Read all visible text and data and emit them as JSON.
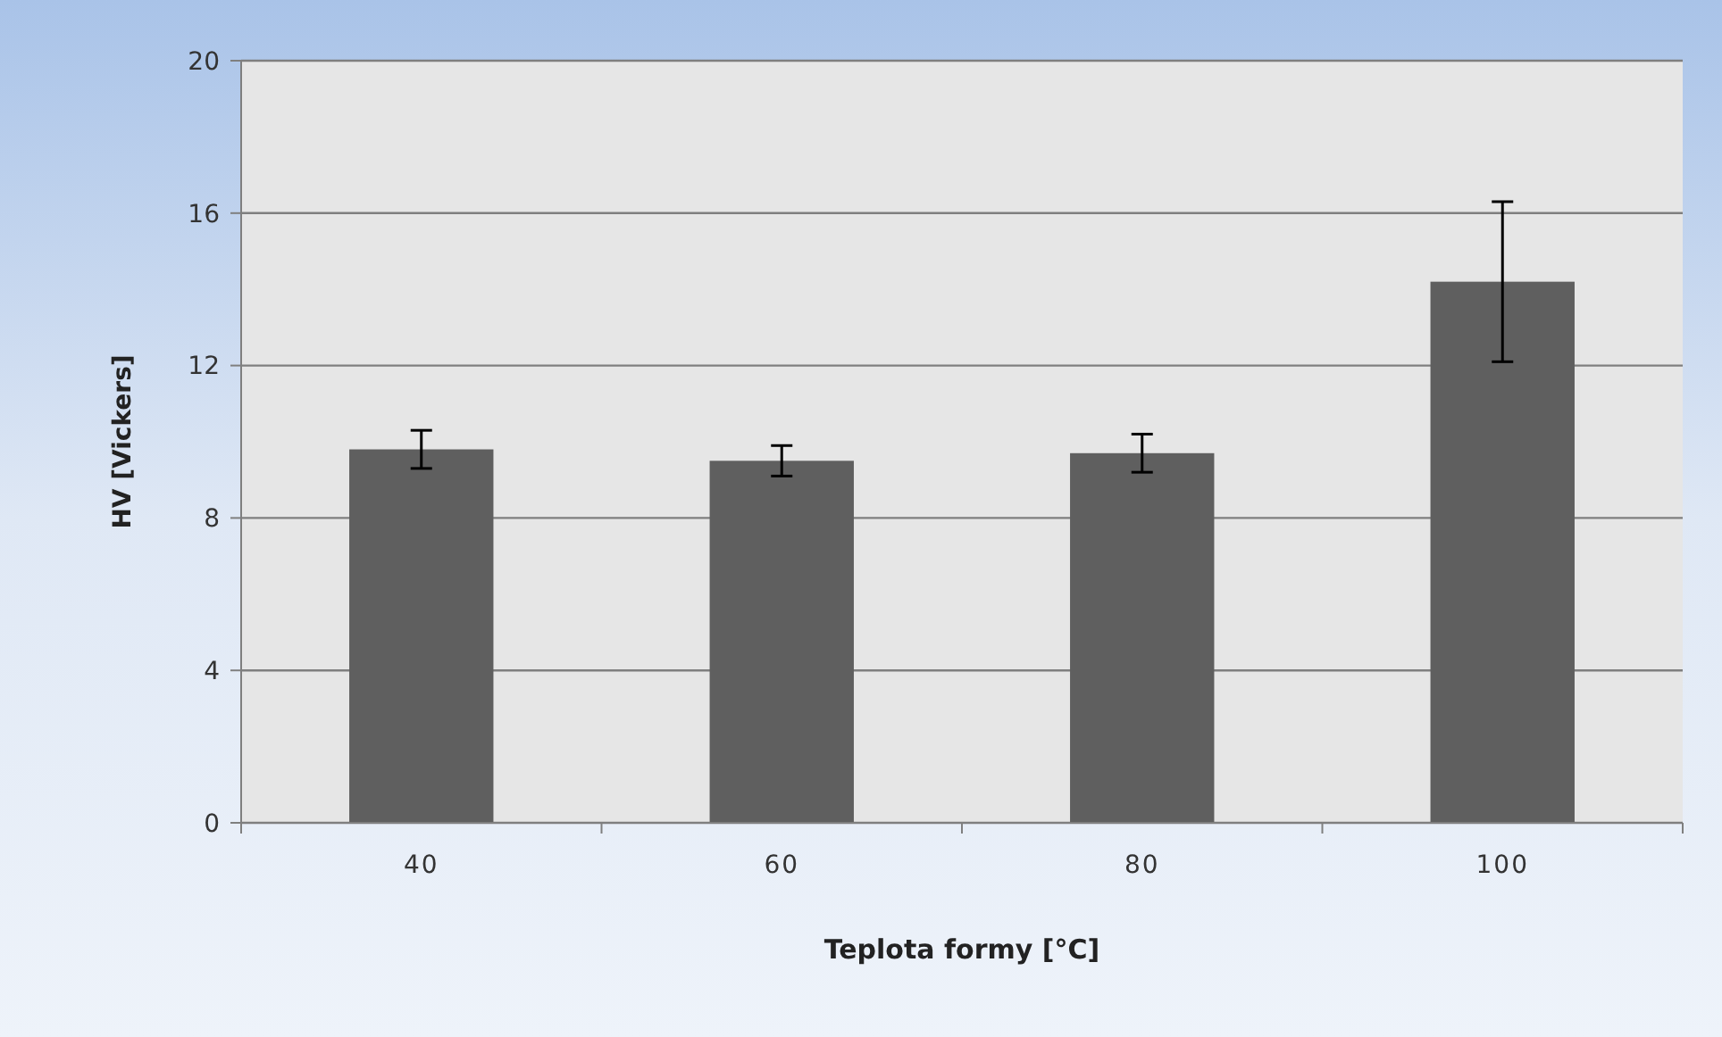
{
  "chart_data": {
    "type": "bar",
    "xlabel": "Teplota formy [°C]",
    "ylabel": "HV [Vickers]",
    "categories": [
      "40",
      "60",
      "80",
      "100"
    ],
    "values": [
      9.8,
      9.5,
      9.7,
      14.2
    ],
    "errors": [
      0.5,
      0.4,
      0.5,
      2.1
    ],
    "color": "#5f5f5f",
    "ylim": [
      0,
      20
    ],
    "yticks": [
      0,
      4,
      8,
      12,
      16,
      20
    ],
    "grid": "y"
  }
}
